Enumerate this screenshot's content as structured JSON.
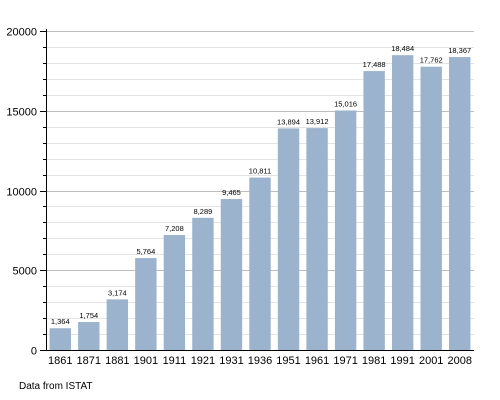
{
  "chart_data": {
    "type": "bar",
    "categories": [
      "1861",
      "1871",
      "1881",
      "1901",
      "1911",
      "1921",
      "1931",
      "1936",
      "1951",
      "1961",
      "1971",
      "1981",
      "1991",
      "2001",
      "2008"
    ],
    "values": [
      1364,
      1754,
      3174,
      5764,
      7208,
      8289,
      9465,
      10811,
      13894,
      13912,
      15016,
      17488,
      18484,
      17762,
      18367
    ],
    "data_labels": [
      "1,364",
      "1,754",
      "3,174",
      "5,764",
      "7,208",
      "8,289",
      "9,465",
      "10,811",
      "13,894",
      "13,912",
      "15,016",
      "17,488",
      "18,484",
      "17,762",
      "18,367"
    ],
    "y_ticks": [
      0,
      5000,
      10000,
      15000,
      20000
    ],
    "ylim": [
      0,
      20000
    ],
    "grid": true,
    "title": "",
    "xlabel": "",
    "ylabel": ""
  },
  "footnote": "Data from ISTAT",
  "colors": {
    "bar": "#9bb3cd",
    "grid_major": "#bdbdbd",
    "grid_minor": "#e3e3e3",
    "axis": "#000000"
  }
}
